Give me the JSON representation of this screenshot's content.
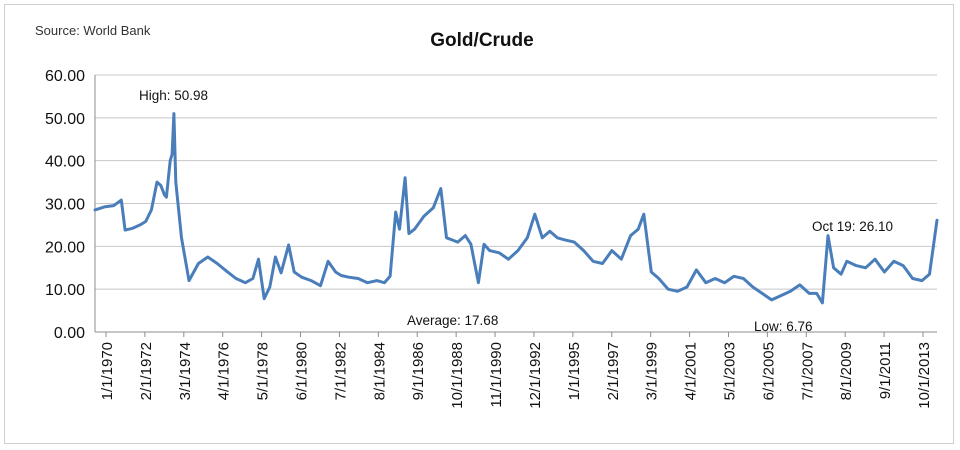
{
  "source_label": "Source: World Bank",
  "chart_data": {
    "type": "line",
    "title": "Gold/Crude",
    "xlabel": "",
    "ylabel": "",
    "ylim": [
      0,
      60
    ],
    "yticks": [
      "0.00",
      "10.00",
      "20.00",
      "30.00",
      "40.00",
      "50.00",
      "60.00"
    ],
    "grid": "horizontal",
    "legend": "none",
    "line_color": "#4a7ebb",
    "xticks": [
      "1/1/1970",
      "2/1/1972",
      "3/1/1974",
      "4/1/1976",
      "5/1/1978",
      "6/1/1980",
      "7/1/1982",
      "8/1/1984",
      "9/1/1986",
      "10/1/1988",
      "11/1/1990",
      "12/1/1992",
      "1/1/1995",
      "2/1/1997",
      "3/1/1999",
      "4/1/2001",
      "5/1/2003",
      "6/1/2005",
      "7/1/2007",
      "8/1/2009",
      "9/1/2011",
      "10/1/2013"
    ],
    "annotations": [
      {
        "text": "High: 50.98",
        "x": 1973.8,
        "y": 50.98
      },
      {
        "text": "Average: 17.68",
        "x": 1987.0,
        "y": 17.68
      },
      {
        "text": "Low: 6.76",
        "x": 2008.1,
        "y": 6.76
      },
      {
        "text": "Oct 19: 26.10",
        "x": 2014.8,
        "y": 26.1
      }
    ],
    "series": [
      {
        "x": [
          1970.0,
          1970.5,
          1971.0,
          1971.4,
          1971.6,
          1972.0,
          1972.4,
          1972.7,
          1973.0,
          1973.3,
          1973.5,
          1973.7,
          1973.8,
          1974.0,
          1974.1,
          1974.2,
          1974.3,
          1974.6,
          1975.0,
          1975.5,
          1976.0,
          1976.5,
          1977.0,
          1977.5,
          1978.0,
          1978.4,
          1978.7,
          1979.0,
          1979.3,
          1979.6,
          1979.9,
          1980.3,
          1980.6,
          1981.0,
          1981.5,
          1982.0,
          1982.4,
          1982.8,
          1983.1,
          1983.5,
          1984.0,
          1984.5,
          1985.0,
          1985.4,
          1985.7,
          1986.0,
          1986.2,
          1986.5,
          1986.7,
          1987.0,
          1987.5,
          1988.0,
          1988.4,
          1988.7,
          1989.0,
          1989.3,
          1989.7,
          1990.0,
          1990.4,
          1990.7,
          1991.0,
          1991.5,
          1992.0,
          1992.5,
          1993.0,
          1993.4,
          1993.8,
          1994.2,
          1994.6,
          1995.0,
          1995.5,
          1996.0,
          1996.5,
          1997.0,
          1997.5,
          1998.0,
          1998.5,
          1998.9,
          1999.2,
          1999.6,
          2000.0,
          2000.5,
          2001.0,
          2001.5,
          2002.0,
          2002.5,
          2003.0,
          2003.5,
          2004.0,
          2004.5,
          2005.0,
          2005.5,
          2006.0,
          2006.5,
          2007.0,
          2007.5,
          2008.0,
          2008.4,
          2008.7,
          2009.0,
          2009.3,
          2009.7,
          2010.0,
          2010.5,
          2011.0,
          2011.5,
          2012.0,
          2012.5,
          2013.0,
          2013.5,
          2014.0,
          2014.4,
          2014.8
        ],
        "values": [
          28.5,
          29.2,
          29.5,
          30.8,
          23.8,
          24.2,
          25.0,
          25.8,
          28.5,
          35.0,
          34.2,
          32.0,
          31.5,
          40.0,
          41.5,
          51.0,
          35.0,
          22.0,
          12.0,
          16.0,
          17.5,
          16.0,
          14.2,
          12.5,
          11.5,
          12.5,
          17.0,
          7.8,
          10.5,
          17.5,
          13.8,
          20.3,
          14.0,
          12.8,
          12.0,
          10.8,
          16.5,
          14.0,
          13.2,
          12.8,
          12.5,
          11.5,
          12.0,
          11.5,
          13.0,
          28.0,
          24.0,
          36.0,
          23.0,
          24.0,
          27.0,
          29.0,
          33.5,
          22.0,
          21.5,
          21.0,
          22.5,
          20.5,
          11.5,
          20.5,
          19.0,
          18.5,
          17.0,
          19.0,
          22.0,
          27.5,
          22.0,
          23.5,
          22.0,
          21.5,
          21.0,
          19.0,
          16.5,
          16.0,
          19.0,
          17.0,
          22.5,
          24.0,
          27.5,
          14.0,
          12.5,
          10.0,
          9.5,
          10.5,
          14.5,
          11.5,
          12.5,
          11.5,
          13.0,
          12.5,
          10.5,
          9.0,
          7.5,
          8.5,
          9.5,
          11.0,
          9.0,
          9.0,
          6.8,
          22.5,
          15.0,
          13.5,
          16.5,
          15.5,
          15.0,
          17.0,
          14.0,
          16.5,
          15.5,
          12.5,
          12.0,
          13.5,
          26.1
        ]
      }
    ]
  }
}
